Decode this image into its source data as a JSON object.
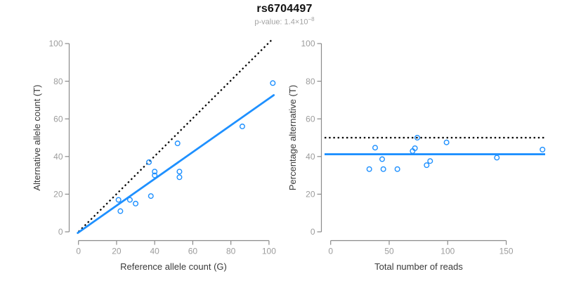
{
  "header": {
    "title": "rs6704497",
    "pvalue_label": "p-value: 1.4×10",
    "pvalue_exponent": "−8"
  },
  "colors": {
    "accent_blue": "#1E90FF",
    "axis_gray": "#8a8a8a",
    "tick_label_gray": "#9c9c9c",
    "axis_title_color": "#3a3a3a",
    "dotted_line_black": "#000000"
  },
  "chart_data": [
    {
      "type": "scatter",
      "panel": "left",
      "xlabel": "Reference allele count (G)",
      "ylabel": "Alternative allele count (T)",
      "xlim": [
        0,
        102
      ],
      "ylim": [
        0,
        102
      ],
      "xticks": [
        0,
        20,
        40,
        60,
        80,
        100
      ],
      "yticks": [
        0,
        20,
        40,
        60,
        80,
        100
      ],
      "points": [
        [
          102,
          79
        ],
        [
          86,
          56
        ],
        [
          52,
          47
        ],
        [
          37,
          37
        ],
        [
          40,
          32
        ],
        [
          40,
          30
        ],
        [
          53,
          32
        ],
        [
          53,
          29
        ],
        [
          38,
          19
        ],
        [
          21,
          17
        ],
        [
          27,
          17
        ],
        [
          30,
          15
        ],
        [
          22,
          11
        ]
      ],
      "identity_line": {
        "style": "dotted",
        "from": [
          0,
          0
        ],
        "to": [
          101.5,
          102
        ]
      },
      "fit_line": {
        "style": "solid",
        "from": [
          -0.4,
          -0.6
        ],
        "to": [
          102.5,
          72.6
        ]
      },
      "grid": false,
      "legend": "none"
    },
    {
      "type": "scatter",
      "panel": "right",
      "xlabel": "Total number of reads",
      "ylabel": "Percentage alternative (T)",
      "xlim": [
        0,
        181
      ],
      "ylim": [
        0,
        102
      ],
      "xticks": [
        0,
        50,
        100,
        150
      ],
      "yticks": [
        0,
        20,
        40,
        60,
        80,
        100
      ],
      "points": [
        [
          181,
          43.7
        ],
        [
          142,
          39.4
        ],
        [
          99,
          47.5
        ],
        [
          74,
          50
        ],
        [
          72,
          44.4
        ],
        [
          70,
          42.9
        ],
        [
          85,
          37.6
        ],
        [
          82,
          35.4
        ],
        [
          57,
          33.3
        ],
        [
          38,
          44.7
        ],
        [
          44,
          38.6
        ],
        [
          45,
          33.3
        ],
        [
          33,
          33.3
        ]
      ],
      "hline_dotted": 50,
      "hline_solid": 41.2,
      "grid": false,
      "legend": "none"
    }
  ]
}
